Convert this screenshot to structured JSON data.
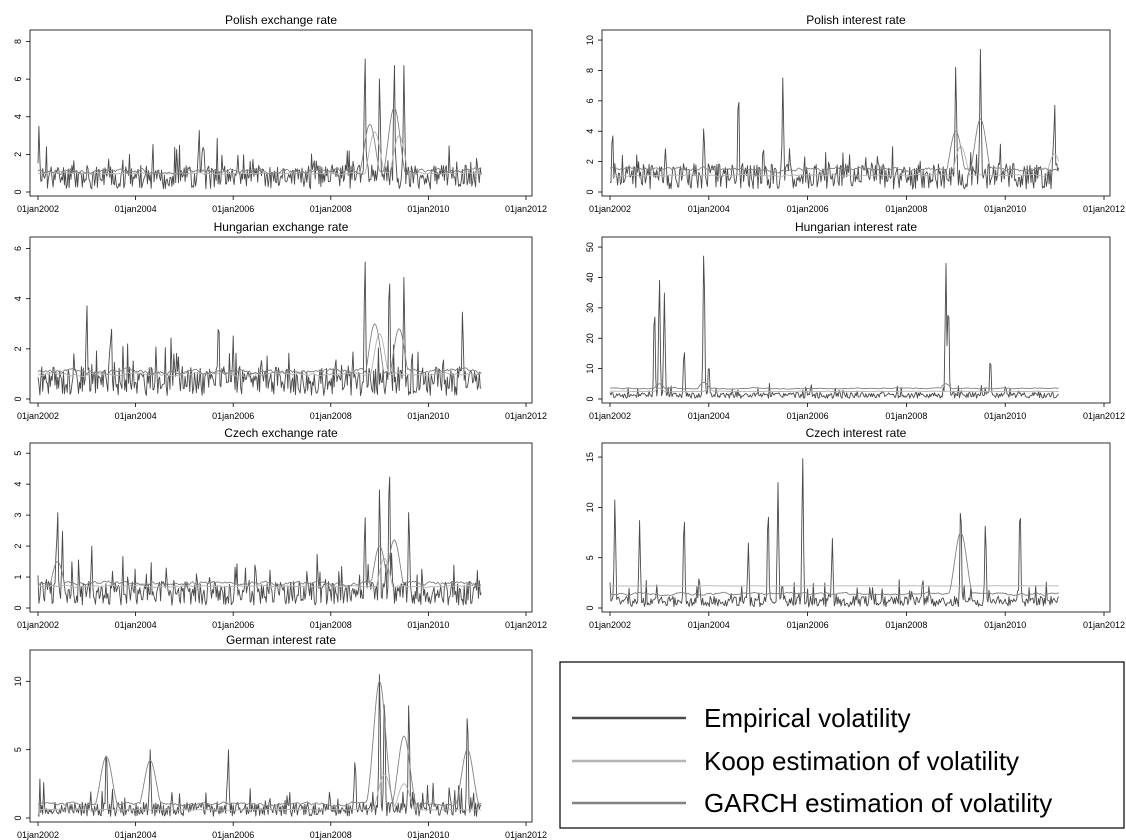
{
  "chart_data": [
    {
      "type": "line",
      "title": "Polish exchange rate",
      "x_ticks": [
        "01jan2002",
        "01jan2004",
        "01jan2006",
        "01jan2008",
        "01jan2010",
        "01jan2012"
      ],
      "y_ticks": [
        "0",
        "2",
        "4",
        "6",
        "8"
      ],
      "ylim": [
        0,
        8.4
      ],
      "xlim": [
        "2002-01-01",
        "2012-01-01"
      ],
      "data_end": "2011-01-31",
      "series": [
        {
          "color": "#4a4a4a",
          "base": 1.0,
          "amp": 0.7,
          "seed": 11,
          "peaks": [
            [
              2002.02,
              3.5
            ],
            [
              2005.3,
              3.4
            ],
            [
              2008.7,
              7.5
            ],
            [
              2009.0,
              6.3
            ],
            [
              2009.3,
              7.0
            ],
            [
              2009.5,
              6.8
            ]
          ]
        },
        {
          "color": "#b4b4b4",
          "base": 1.0,
          "amp": 0.2,
          "seed": 12,
          "smooth": true,
          "peaks": [
            [
              2008.9,
              3.2
            ],
            [
              2009.4,
              3.0
            ]
          ]
        },
        {
          "color": "#828282",
          "base": 1.1,
          "amp": 0.4,
          "seed": 13,
          "smooth": true,
          "peaks": [
            [
              2008.8,
              3.6
            ],
            [
              2009.3,
              4.5
            ]
          ]
        }
      ]
    },
    {
      "type": "line",
      "title": "Polish interest rate",
      "x_ticks": [
        "01jan2002",
        "01jan2004",
        "01jan2006",
        "01jan2008",
        "01jan2010",
        "01jan2012"
      ],
      "y_ticks": [
        "0",
        "2",
        "4",
        "6",
        "8",
        "10"
      ],
      "ylim": [
        0,
        10.4
      ],
      "xlim": [
        "2002-01-01",
        "2012-01-01"
      ],
      "data_end": "2011-01-31",
      "series": [
        {
          "color": "#4a4a4a",
          "base": 1.3,
          "amp": 0.9,
          "seed": 21,
          "peaks": [
            [
              2002.05,
              4.2
            ],
            [
              2003.9,
              4.5
            ],
            [
              2004.6,
              6.9
            ],
            [
              2005.5,
              7.6
            ],
            [
              2009.0,
              8.6
            ],
            [
              2009.5,
              9.5
            ],
            [
              2011.0,
              6.0
            ]
          ]
        },
        {
          "color": "#b4b4b4",
          "base": 1.1,
          "amp": 0.2,
          "seed": 22,
          "smooth": true,
          "peaks": [
            [
              2009.1,
              3.0
            ],
            [
              2011.0,
              2.5
            ]
          ]
        },
        {
          "color": "#828282",
          "base": 1.5,
          "amp": 0.4,
          "seed": 23,
          "smooth": true,
          "peaks": [
            [
              2009.0,
              4.0
            ],
            [
              2009.5,
              4.8
            ]
          ]
        }
      ]
    },
    {
      "type": "line",
      "title": "Hungarian exchange rate",
      "x_ticks": [
        "01jan2002",
        "01jan2004",
        "01jan2006",
        "01jan2008",
        "01jan2010",
        "01jan2012"
      ],
      "y_ticks": [
        "0",
        "2",
        "4",
        "6"
      ],
      "ylim": [
        0,
        6.3
      ],
      "xlim": [
        "2002-01-01",
        "2012-01-01"
      ],
      "data_end": "2011-01-31",
      "series": [
        {
          "color": "#4a4a4a",
          "base": 0.9,
          "amp": 0.6,
          "seed": 31,
          "peaks": [
            [
              2003.0,
              3.9
            ],
            [
              2003.5,
              3.1
            ],
            [
              2005.7,
              3.3
            ],
            [
              2008.7,
              5.8
            ],
            [
              2009.2,
              5.2
            ],
            [
              2009.5,
              4.9
            ],
            [
              2010.7,
              3.6
            ]
          ]
        },
        {
          "color": "#b4b4b4",
          "base": 1.0,
          "amp": 0.2,
          "seed": 32,
          "smooth": true,
          "peaks": [
            [
              2009.0,
              2.6
            ]
          ]
        },
        {
          "color": "#828282",
          "base": 1.1,
          "amp": 0.3,
          "seed": 33,
          "smooth": true,
          "peaks": [
            [
              2008.9,
              3.0
            ],
            [
              2009.4,
              2.8
            ]
          ]
        }
      ]
    },
    {
      "type": "line",
      "title": "Hungarian interest rate",
      "x_ticks": [
        "01jan2002",
        "01jan2004",
        "01jan2006",
        "01jan2008",
        "01jan2010",
        "01jan2012"
      ],
      "y_ticks": [
        "0",
        "10",
        "20",
        "30",
        "40",
        "50"
      ],
      "ylim": [
        0,
        52
      ],
      "xlim": [
        "2002-01-01",
        "2012-01-01"
      ],
      "data_end": "2011-01-31",
      "series": [
        {
          "color": "#4a4a4a",
          "base": 1.5,
          "amp": 1.5,
          "seed": 41,
          "peaks": [
            [
              2002.9,
              31
            ],
            [
              2003.0,
              41
            ],
            [
              2003.1,
              35
            ],
            [
              2003.5,
              17
            ],
            [
              2003.9,
              51
            ],
            [
              2004.0,
              12
            ],
            [
              2008.8,
              45
            ],
            [
              2008.85,
              33
            ],
            [
              2009.7,
              14
            ]
          ]
        },
        {
          "color": "#b4b4b4",
          "base": 2.5,
          "amp": 0.3,
          "seed": 42,
          "smooth": true,
          "peaks": [
            [
              2003.0,
              3.5
            ],
            [
              2004.0,
              3.3
            ]
          ]
        },
        {
          "color": "#828282",
          "base": 3.5,
          "amp": 0.6,
          "seed": 43,
          "smooth": true,
          "peaks": [
            [
              2003.0,
              5.0
            ],
            [
              2003.9,
              5.5
            ],
            [
              2008.8,
              5.0
            ]
          ]
        }
      ]
    },
    {
      "type": "line",
      "title": "Czech exchange rate",
      "x_ticks": [
        "01jan2002",
        "01jan2004",
        "01jan2006",
        "01jan2008",
        "01jan2010",
        "01jan2012"
      ],
      "y_ticks": [
        "0",
        "1",
        "2",
        "3",
        "4",
        "5"
      ],
      "ylim": [
        0,
        5.2
      ],
      "xlim": [
        "2002-01-01",
        "2012-01-01"
      ],
      "data_end": "2011-01-31",
      "series": [
        {
          "color": "#4a4a4a",
          "base": 0.6,
          "amp": 0.45,
          "seed": 51,
          "peaks": [
            [
              2002.4,
              3.3
            ],
            [
              2002.5,
              2.5
            ],
            [
              2003.1,
              2.0
            ],
            [
              2008.7,
              3.1
            ],
            [
              2009.0,
              4.0
            ],
            [
              2009.2,
              4.8
            ],
            [
              2009.6,
              3.3
            ]
          ]
        },
        {
          "color": "#b4b4b4",
          "base": 0.7,
          "amp": 0.1,
          "seed": 52,
          "smooth": true,
          "peaks": [
            [
              2009.1,
              1.6
            ]
          ]
        },
        {
          "color": "#828282",
          "base": 0.8,
          "amp": 0.2,
          "seed": 53,
          "smooth": true,
          "peaks": [
            [
              2002.4,
              1.5
            ],
            [
              2009.0,
              2.0
            ],
            [
              2009.3,
              2.2
            ]
          ]
        }
      ]
    },
    {
      "type": "line",
      "title": "Czech interest rate",
      "x_ticks": [
        "01jan2002",
        "01jan2004",
        "01jan2006",
        "01jan2008",
        "01jan2010",
        "01jan2012"
      ],
      "y_ticks": [
        "0",
        "5",
        "10",
        "15"
      ],
      "ylim": [
        0,
        16
      ],
      "xlim": [
        "2002-01-01",
        "2012-01-01"
      ],
      "data_end": "2011-01-31",
      "series": [
        {
          "color": "#4a4a4a",
          "base": 0.8,
          "amp": 0.9,
          "seed": 61,
          "peaks": [
            [
              2002.1,
              11
            ],
            [
              2002.6,
              8.7
            ],
            [
              2003.5,
              9.5
            ],
            [
              2004.8,
              6.5
            ],
            [
              2005.2,
              10.2
            ],
            [
              2005.4,
              12.5
            ],
            [
              2005.9,
              15.2
            ],
            [
              2006.5,
              7.0
            ],
            [
              2009.1,
              10.8
            ],
            [
              2009.6,
              8.7
            ],
            [
              2010.3,
              10.6
            ]
          ]
        },
        {
          "color": "#b4b4b4",
          "base": 2.2,
          "amp": 0.05,
          "seed": 62,
          "smooth": true,
          "peaks": []
        },
        {
          "color": "#828282",
          "base": 1.4,
          "amp": 0.4,
          "seed": 63,
          "smooth": true,
          "peaks": [
            [
              2009.1,
              7.5
            ]
          ]
        }
      ]
    },
    {
      "type": "line",
      "title": "German interest rate",
      "x_ticks": [
        "01jan2002",
        "01jan2004",
        "01jan2006",
        "01jan2008",
        "01jan2010",
        "01jan2012"
      ],
      "y_ticks": [
        "0",
        "5",
        "10"
      ],
      "ylim": [
        0,
        12
      ],
      "xlim": [
        "2002-01-01",
        "2012-01-01"
      ],
      "data_end": "2011-01-31",
      "series": [
        {
          "color": "#4a4a4a",
          "base": 0.8,
          "amp": 0.8,
          "seed": 71,
          "peaks": [
            [
              2003.4,
              5.3
            ],
            [
              2004.3,
              5.0
            ],
            [
              2005.9,
              5.1
            ],
            [
              2008.5,
              4.5
            ],
            [
              2009.0,
              11.0
            ],
            [
              2009.1,
              9.5
            ],
            [
              2009.6,
              8.8
            ],
            [
              2010.8,
              8.2
            ]
          ]
        },
        {
          "color": "#b4b4b4",
          "base": 0.6,
          "amp": 0.1,
          "seed": 72,
          "smooth": true,
          "peaks": [
            [
              2009.1,
              3.2
            ],
            [
              2009.5,
              2.5
            ]
          ]
        },
        {
          "color": "#828282",
          "base": 1.0,
          "amp": 0.4,
          "seed": 73,
          "smooth": true,
          "peaks": [
            [
              2003.4,
              4.5
            ],
            [
              2004.3,
              4.2
            ],
            [
              2009.0,
              10.0
            ],
            [
              2009.5,
              6.0
            ],
            [
              2010.8,
              5.0
            ]
          ]
        }
      ]
    }
  ],
  "legend": {
    "placement": "bottom-right",
    "items": [
      {
        "label": "Empirical volatility",
        "color": "#4a4a4a"
      },
      {
        "label": "Koop estimation of volatility",
        "color": "#b4b4b4"
      },
      {
        "label": "GARCH estimation of volatility",
        "color": "#828282"
      }
    ]
  }
}
